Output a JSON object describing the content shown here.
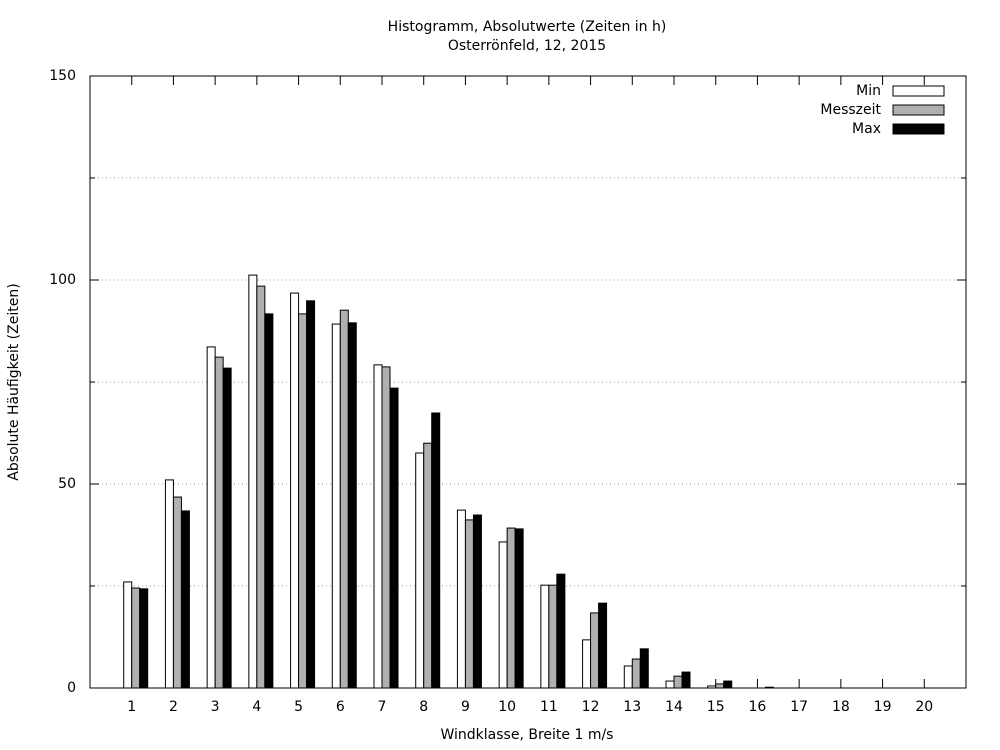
{
  "chart_data": {
    "type": "bar",
    "title": "Histogramm, Absolutwerte (Zeiten in h)",
    "subtitle": "Osterrönfeld, 12, 2015",
    "x_label": "Windklasse, Breite 1 m/s",
    "y_label": "Absolute Häufigkeit (Zeiten)",
    "x": [
      1,
      2,
      3,
      4,
      5,
      6,
      7,
      8,
      9,
      10,
      11,
      12,
      13,
      14,
      15,
      16,
      17,
      18,
      19,
      20
    ],
    "xlim": [
      0,
      21
    ],
    "xticks": [
      1,
      2,
      3,
      4,
      5,
      6,
      7,
      8,
      9,
      10,
      11,
      12,
      13,
      14,
      15,
      16,
      17,
      18,
      19,
      20
    ],
    "ylim": [
      0,
      150
    ],
    "yticks": [
      0,
      50,
      100,
      150
    ],
    "yminorticks": [
      25,
      75,
      125
    ],
    "grid": true,
    "legend": "top-right",
    "series": [
      {
        "name": "Min",
        "color": "#ffffff",
        "values": [
          26,
          51,
          83.6,
          101.2,
          96.8,
          89.2,
          79.2,
          57.6,
          43.6,
          35.8,
          25.2,
          11.8,
          5.4,
          1.7,
          0.5,
          0,
          0,
          0,
          0,
          0
        ]
      },
      {
        "name": "Messzeit",
        "color": "#b0b0b0",
        "values": [
          24.5,
          46.8,
          81.1,
          98.5,
          91.7,
          92.6,
          78.7,
          60,
          41.2,
          39.2,
          25.2,
          18.4,
          7.1,
          2.9,
          1,
          0,
          0,
          0,
          0,
          0
        ]
      },
      {
        "name": "Max",
        "color": "#000000",
        "values": [
          24.3,
          43.4,
          78.4,
          91.7,
          94.9,
          89.5,
          73.5,
          67.4,
          42.4,
          39,
          27.9,
          20.8,
          9.6,
          3.9,
          1.7,
          0.2,
          0,
          0,
          0,
          0
        ]
      }
    ]
  }
}
